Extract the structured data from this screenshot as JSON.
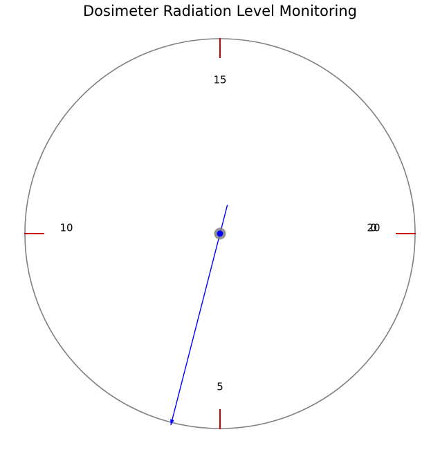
{
  "chart_data": {
    "type": "gauge",
    "title": "Dosimeter Radiation Level Monitoring",
    "value_min": 0,
    "value_max": 20,
    "ticks": [
      {
        "value": 0,
        "label": "0"
      },
      {
        "value": 5,
        "label": "5"
      },
      {
        "value": 10,
        "label": "10"
      },
      {
        "value": 15,
        "label": "15"
      },
      {
        "value": 20,
        "label": "20"
      }
    ],
    "needle_value": 5.8,
    "colors": {
      "dial": "#808080",
      "tick": "#cc0000",
      "needle": "#0000ff",
      "hub": "#808080"
    }
  }
}
